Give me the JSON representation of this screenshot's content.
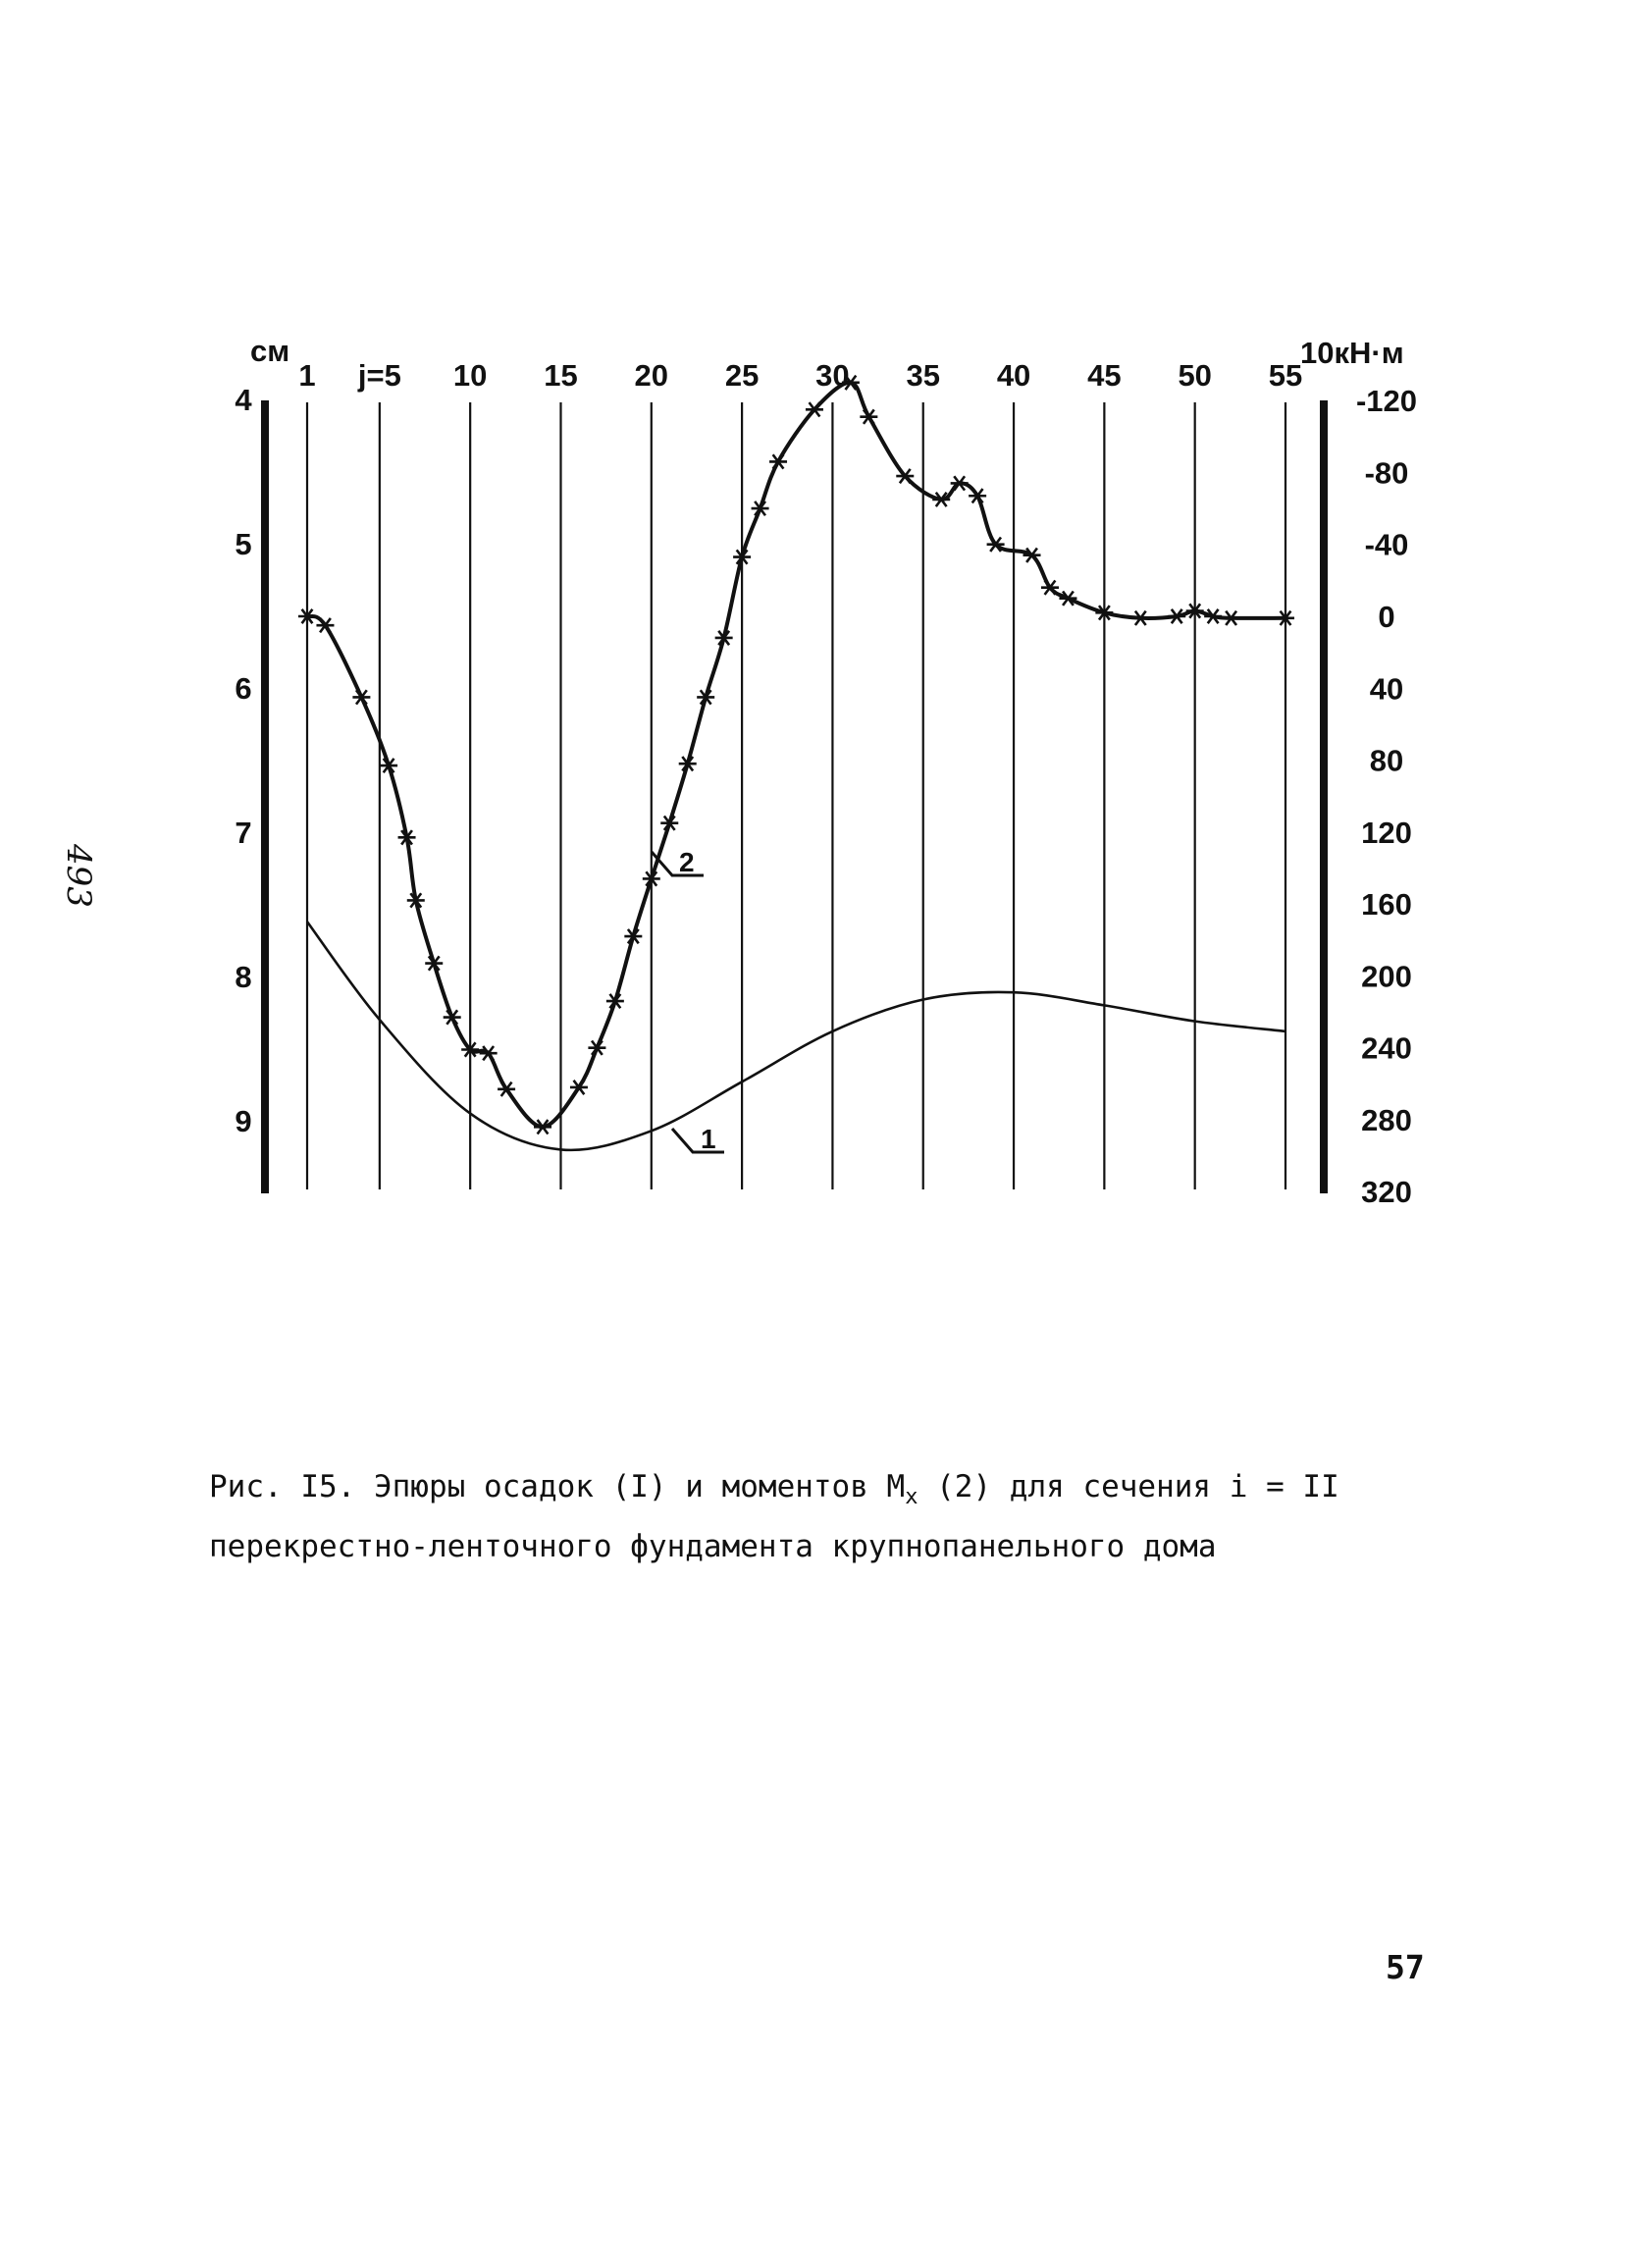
{
  "margin_note": "493",
  "caption": {
    "line1_a": "Рис. I5. Эпюры осадок (I) и моментов M",
    "line1_sub": "x",
    "line1_b": " (2) для сечения i = II",
    "line2": "перекрестно-ленточного фундамента крупнопанельного дома"
  },
  "page_number": "57",
  "chart_data": {
    "type": "line",
    "title": "",
    "x_tick_labels": [
      "1",
      "j=5",
      "10",
      "15",
      "20",
      "25",
      "30",
      "35",
      "40",
      "45",
      "50",
      "55"
    ],
    "x_ticks": [
      1,
      5,
      10,
      15,
      20,
      25,
      30,
      35,
      40,
      45,
      50,
      55
    ],
    "xlim": [
      1,
      55
    ],
    "left_axis": {
      "unit": "см",
      "ticks": [
        "4",
        "5",
        "6",
        "7",
        "8",
        "9"
      ],
      "ylim": [
        4,
        9.5
      ],
      "inverted": true
    },
    "right_axis": {
      "unit": "10кН·м",
      "ticks": [
        "-120",
        "-80",
        "-40",
        "0",
        "40",
        "80",
        "120",
        "160",
        "200",
        "240",
        "280",
        "320"
      ],
      "ylim": [
        -120,
        320
      ],
      "inverted": true
    },
    "grid": "vertical lines at x ticks",
    "series": [
      {
        "name": "1",
        "axis": "left",
        "marker": "none",
        "x": [
          1,
          5,
          10,
          15,
          20,
          25,
          30,
          35,
          40,
          45,
          50,
          55
        ],
        "y": [
          7.62,
          8.3,
          8.95,
          9.2,
          9.07,
          8.73,
          8.38,
          8.16,
          8.11,
          8.2,
          8.31,
          8.38
        ]
      },
      {
        "name": "2",
        "axis": "right",
        "marker": "asterisk",
        "x": [
          1,
          2,
          4,
          5.5,
          6.5,
          7,
          8,
          9,
          10,
          11,
          12,
          14,
          16,
          17,
          18,
          19,
          20,
          21,
          22,
          23,
          24,
          25,
          26,
          27,
          29,
          31,
          32,
          34,
          36,
          37,
          38,
          39,
          41,
          42,
          43,
          45,
          47,
          49,
          50,
          51,
          52,
          55
        ],
        "y": [
          0,
          5,
          45,
          83,
          123,
          158,
          193,
          223,
          241,
          243,
          263,
          284,
          262,
          240,
          214,
          178,
          146,
          115,
          82,
          45,
          12,
          -33,
          -60,
          -86,
          -115,
          -130,
          -111,
          -78,
          -65,
          -74,
          -67,
          -40,
          -34,
          -16,
          -10,
          -2,
          1,
          0,
          -3,
          0,
          1,
          1
        ]
      }
    ]
  }
}
